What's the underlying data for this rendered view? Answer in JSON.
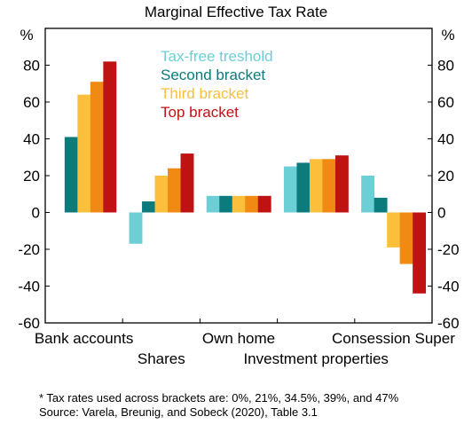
{
  "chart_data": {
    "type": "bar",
    "title": "Marginal Effective Tax Rate",
    "ylabel_left": "%",
    "ylabel_right": "%",
    "ylim": [
      -60,
      100
    ],
    "yticks": [
      "80",
      "60",
      "40",
      "20",
      "0",
      "-20",
      "-40",
      "-60"
    ],
    "grid": false,
    "legend_position": "top-center",
    "categories": [
      "Bank accounts",
      "Shares",
      "Own home",
      "Investment properties",
      "Consession Super"
    ],
    "series": [
      {
        "name": "Tax-free treshold",
        "color": "#6ccfd6",
        "values": [
          0,
          -17,
          9,
          25,
          20
        ]
      },
      {
        "name": "Second bracket",
        "color": "#0c7b7b",
        "values": [
          41,
          6,
          9,
          27,
          8
        ]
      },
      {
        "name": "Third bracket",
        "color": "#fbbf3c",
        "values": [
          64,
          20,
          9,
          29,
          -19
        ]
      },
      {
        "name": "",
        "color": "#f08a12",
        "values": [
          71,
          24,
          9,
          29,
          -28
        ]
      },
      {
        "name": "Top bracket",
        "color": "#bf1313",
        "values": [
          82,
          32,
          9,
          31,
          -44
        ]
      }
    ]
  },
  "notes": {
    "footnote": "* Tax rates used across brackets are: 0%, 21%, 34.5%, 39%, and 47%",
    "source": "Source: Varela, Breunig, and Sobeck (2020), Table 3.1"
  }
}
